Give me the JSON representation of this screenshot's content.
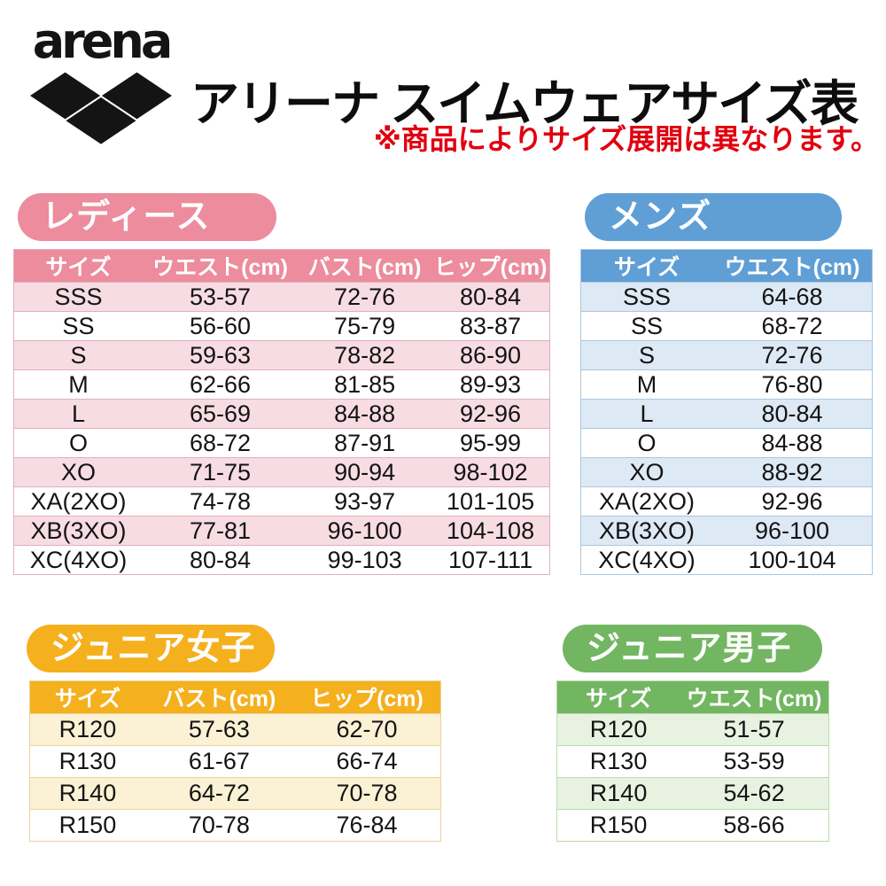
{
  "brand": {
    "logo_text": "arena"
  },
  "header": {
    "title": "アリーナ スイムウェアサイズ表",
    "note": "※商品によりサイズ展開は異なります。",
    "note_color": "#e1000f",
    "title_color": "#0d0d0d"
  },
  "tables": [
    {
      "id": "ladies",
      "badge": "レディース",
      "accent": "#EC8C9C",
      "light": "#F7DCE3",
      "line": "#E2AFBB",
      "headers": [
        "サイズ",
        "ウエスト(cm)",
        "バスト(cm)",
        "ヒップ(cm)"
      ],
      "rows": [
        [
          "SSS",
          "53-57",
          "72-76",
          "80-84"
        ],
        [
          "SS",
          "56-60",
          "75-79",
          "83-87"
        ],
        [
          "S",
          "59-63",
          "78-82",
          "86-90"
        ],
        [
          "M",
          "62-66",
          "81-85",
          "89-93"
        ],
        [
          "L",
          "65-69",
          "84-88",
          "92-96"
        ],
        [
          "O",
          "68-72",
          "87-91",
          "95-99"
        ],
        [
          "XO",
          "71-75",
          "90-94",
          "98-102"
        ],
        [
          "XA(2XO)",
          "74-78",
          "93-97",
          "101-105"
        ],
        [
          "XB(3XO)",
          "77-81",
          "96-100",
          "104-108"
        ],
        [
          "XC(4XO)",
          "80-84",
          "99-103",
          "107-111"
        ]
      ]
    },
    {
      "id": "mens",
      "badge": "メンズ",
      "accent": "#5F9FD6",
      "light": "#DDE9F4",
      "line": "#A9C8E2",
      "headers": [
        "サイズ",
        "ウエスト(cm)"
      ],
      "rows": [
        [
          "SSS",
          "64-68"
        ],
        [
          "SS",
          "68-72"
        ],
        [
          "S",
          "72-76"
        ],
        [
          "M",
          "76-80"
        ],
        [
          "L",
          "80-84"
        ],
        [
          "O",
          "84-88"
        ],
        [
          "XO",
          "88-92"
        ],
        [
          "XA(2XO)",
          "92-96"
        ],
        [
          "XB(3XO)",
          "96-100"
        ],
        [
          "XC(4XO)",
          "100-104"
        ]
      ]
    },
    {
      "id": "junior-girls",
      "badge": "ジュニア女子",
      "accent": "#F5B01E",
      "light": "#FBF1D4",
      "line": "#EBD49B",
      "headers": [
        "サイズ",
        "バスト(cm)",
        "ヒップ(cm)"
      ],
      "rows": [
        [
          "R120",
          "57-63",
          "62-70"
        ],
        [
          "R130",
          "61-67",
          "66-74"
        ],
        [
          "R140",
          "64-72",
          "70-78"
        ],
        [
          "R150",
          "70-78",
          "76-84"
        ]
      ]
    },
    {
      "id": "junior-boys",
      "badge": "ジュニア男子",
      "accent": "#72B661",
      "light": "#E7F2E0",
      "line": "#BCDAAE",
      "headers": [
        "サイズ",
        "ウエスト(cm)"
      ],
      "rows": [
        [
          "R120",
          "51-57"
        ],
        [
          "R130",
          "53-59"
        ],
        [
          "R140",
          "54-62"
        ],
        [
          "R150",
          "58-66"
        ]
      ]
    }
  ]
}
